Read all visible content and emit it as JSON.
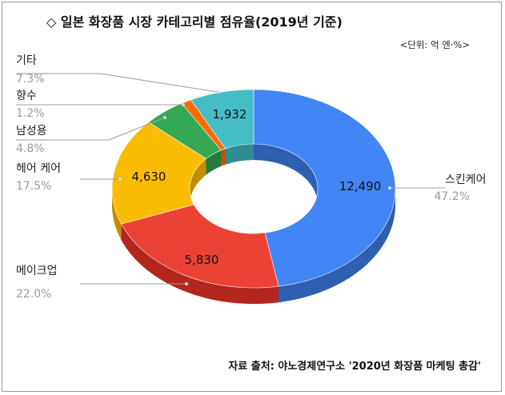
{
  "title": "◇ 일본 화장품 시장 카테고리별 점유율(2019년 기준)",
  "unit_note": "<단위: 억 엔·%>",
  "source": "자료 출처: 야노경제연구소 '2020년 화장품 마케팅 총감'",
  "chart_data": {
    "type": "pie",
    "style": "3d-donut",
    "title": "일본 화장품 시장 카테고리별 점유율(2019년 기준)",
    "slices": [
      {
        "label": "스킨케어",
        "value": 12490,
        "value_text": "12,490",
        "percent": "47.2%",
        "color": "#4285f4",
        "side": "#2f5fb1"
      },
      {
        "label": "메이크업",
        "value": 5830,
        "value_text": "5,830",
        "percent": "22.0%",
        "color": "#ea4335",
        "side": "#b3261e"
      },
      {
        "label": "헤어 케어",
        "value": 4630,
        "value_text": "4,630",
        "percent": "17.5%",
        "color": "#fbbc04",
        "side": "#c08f00"
      },
      {
        "label": "남성용",
        "value": 1270,
        "value_text": "",
        "percent": "4.8%",
        "color": "#34a853",
        "side": "#237a3a"
      },
      {
        "label": "향수",
        "value": 318,
        "value_text": "",
        "percent": "1.2%",
        "color": "#ff6d01",
        "side": "#c45200"
      },
      {
        "label": "기타",
        "value": 1932,
        "value_text": "1,932",
        "percent": "7.3%",
        "color": "#46bdc6",
        "side": "#2f8d94"
      }
    ]
  }
}
